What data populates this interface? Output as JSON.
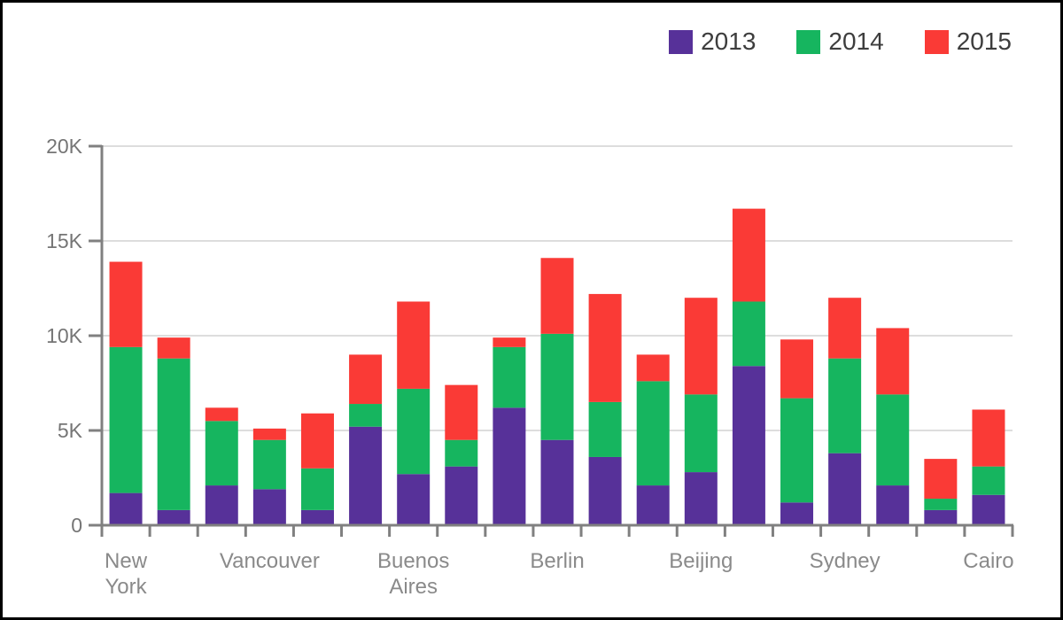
{
  "chart_data": {
    "type": "bar",
    "stacked": true,
    "title": "",
    "categories": [
      "New York",
      "",
      "",
      "Vancouver",
      "",
      "",
      "Buenos Aires",
      "",
      "",
      "Berlin",
      "",
      "",
      "Beijing",
      "",
      "",
      "Sydney",
      "",
      "",
      "Cairo"
    ],
    "series": [
      {
        "name": "2013",
        "color": "#573199",
        "values": [
          1700,
          800,
          2100,
          1900,
          800,
          5200,
          2700,
          3100,
          6200,
          4500,
          3600,
          2100,
          2800,
          8400,
          1200,
          3800,
          2100,
          800,
          1600
        ]
      },
      {
        "name": "2014",
        "color": "#16b55f",
        "values": [
          7700,
          8000,
          3400,
          2600,
          2200,
          1200,
          4500,
          1400,
          3200,
          5600,
          2900,
          5500,
          4100,
          3400,
          5500,
          5000,
          4800,
          600,
          1500
        ]
      },
      {
        "name": "2015",
        "color": "#fa3a36",
        "values": [
          4500,
          1100,
          700,
          600,
          2900,
          2600,
          4600,
          2900,
          500,
          4000,
          5700,
          1400,
          5100,
          4900,
          3100,
          3200,
          3500,
          2100,
          3000
        ]
      }
    ],
    "ylim": [
      0,
      20000
    ],
    "yticks": [
      {
        "value": 0,
        "label": "0"
      },
      {
        "value": 5000,
        "label": "5K"
      },
      {
        "value": 10000,
        "label": "10K"
      },
      {
        "value": 15000,
        "label": "15K"
      },
      {
        "value": 20000,
        "label": "20K"
      }
    ],
    "xlabel": "",
    "ylabel": "",
    "grid": true,
    "legend_position": "top-right"
  },
  "colors": {
    "axis": "#808080",
    "grid": "#dddddd",
    "y_tick_label": "#757575",
    "x_tick_label": "#8a8a8a",
    "legend_text": "#3d3d3d",
    "background": "#ffffff",
    "border": "#000000"
  }
}
